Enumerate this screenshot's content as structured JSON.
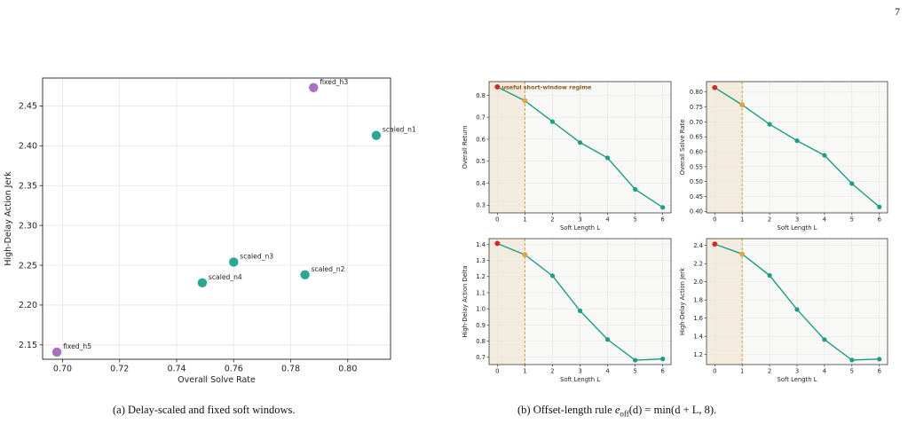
{
  "page_number": "7",
  "colors": {
    "scaled": "#2aa88e",
    "fixed": "#a86fc7",
    "line": "#1a9e86",
    "start_marker": "#d62728",
    "cut_marker": "#e0a43a",
    "regime_shade": "#f3ebdd",
    "cut_line": "#d9a53c",
    "regime_label": "#8b5a1e",
    "plot_bg": "#f8f8f6",
    "grid": "#e5e5e5"
  },
  "captions": {
    "a": "(a) Delay-scaled and fixed soft windows.",
    "b_prefix": "(b) Offset-length rule ",
    "b_formula": "e_off(d) = min(d + L, 8).",
    "b_formula_main": "e",
    "b_formula_sub": "off",
    "b_formula_rest": "(d) = min(d + L, 8)."
  },
  "chart_data": [
    {
      "id": "a",
      "type": "scatter",
      "xlabel": "Overall Solve Rate",
      "ylabel": "High-Delay Action Jerk",
      "xlim": [
        0.693,
        0.815
      ],
      "ylim": [
        2.132,
        2.485
      ],
      "xticks": [
        0.7,
        0.72,
        0.74,
        0.76,
        0.78,
        0.8
      ],
      "xtick_labels": [
        "0.70",
        "0.72",
        "0.74",
        "0.76",
        "0.78",
        "0.80"
      ],
      "yticks": [
        2.15,
        2.2,
        2.25,
        2.3,
        2.35,
        2.4,
        2.45
      ],
      "ytick_labels": [
        "2.15",
        "2.20",
        "2.25",
        "2.30",
        "2.35",
        "2.40",
        "2.45"
      ],
      "grid": true,
      "points": [
        {
          "label": "fixed_h3",
          "x": 0.788,
          "y": 2.473,
          "group": "fixed"
        },
        {
          "label": "scaled_n1",
          "x": 0.81,
          "y": 2.413,
          "group": "scaled"
        },
        {
          "label": "scaled_n3",
          "x": 0.76,
          "y": 2.254,
          "group": "scaled"
        },
        {
          "label": "scaled_n2",
          "x": 0.785,
          "y": 2.238,
          "group": "scaled"
        },
        {
          "label": "scaled_n4",
          "x": 0.749,
          "y": 2.228,
          "group": "scaled"
        },
        {
          "label": "fixed_h5",
          "x": 0.698,
          "y": 2.141,
          "group": "fixed"
        }
      ]
    },
    {
      "id": "b1",
      "type": "line",
      "xlabel": "Soft Length L",
      "ylabel": "Overall Return",
      "x": [
        0,
        1,
        2,
        3,
        4,
        5,
        6
      ],
      "y": [
        0.838,
        0.775,
        0.68,
        0.585,
        0.515,
        0.372,
        0.29
      ],
      "xlim": [
        -0.3,
        6.3
      ],
      "ylim": [
        0.265,
        0.862
      ],
      "yticks": [
        0.3,
        0.4,
        0.5,
        0.6,
        0.7,
        0.8
      ],
      "ytick_labels": [
        "0.3",
        "0.4",
        "0.5",
        "0.6",
        "0.7",
        "0.8"
      ],
      "xtick_labels": [
        "0",
        "1",
        "2",
        "3",
        "4",
        "5",
        "6"
      ],
      "regime_end": 1,
      "annotation": "useful short-window regime",
      "grid": true
    },
    {
      "id": "b2",
      "type": "line",
      "xlabel": "Soft Length L",
      "ylabel": "Overall Solve Rate",
      "x": [
        0,
        1,
        2,
        3,
        4,
        5,
        6
      ],
      "y": [
        0.815,
        0.757,
        0.692,
        0.637,
        0.588,
        0.493,
        0.415
      ],
      "xlim": [
        -0.3,
        6.3
      ],
      "ylim": [
        0.395,
        0.835
      ],
      "yticks": [
        0.4,
        0.45,
        0.5,
        0.55,
        0.6,
        0.65,
        0.7,
        0.75,
        0.8
      ],
      "ytick_labels": [
        "0.40",
        "0.45",
        "0.50",
        "0.55",
        "0.60",
        "0.65",
        "0.70",
        "0.75",
        "0.80"
      ],
      "xtick_labels": [
        "0",
        "1",
        "2",
        "3",
        "4",
        "5",
        "6"
      ],
      "regime_end": 1,
      "grid": true
    },
    {
      "id": "b3",
      "type": "line",
      "xlabel": "Soft Length L",
      "ylabel": "High-Delay Action Delta",
      "x": [
        0,
        1,
        2,
        3,
        4,
        5,
        6
      ],
      "y": [
        1.405,
        1.335,
        1.205,
        0.988,
        0.81,
        0.682,
        0.69
      ],
      "xlim": [
        -0.3,
        6.3
      ],
      "ylim": [
        0.655,
        1.435
      ],
      "yticks": [
        0.7,
        0.8,
        0.9,
        1.0,
        1.1,
        1.2,
        1.3,
        1.4
      ],
      "ytick_labels": [
        "0.7",
        "0.8",
        "0.9",
        "1.0",
        "1.1",
        "1.2",
        "1.3",
        "1.4"
      ],
      "xtick_labels": [
        "0",
        "1",
        "2",
        "3",
        "4",
        "5",
        "6"
      ],
      "regime_end": 1,
      "grid": true
    },
    {
      "id": "b4",
      "type": "line",
      "xlabel": "Soft Length L",
      "ylabel": "High-Delay Action Jerk",
      "x": [
        0,
        1,
        2,
        3,
        4,
        5,
        6
      ],
      "y": [
        2.415,
        2.305,
        2.07,
        1.695,
        1.365,
        1.14,
        1.15
      ],
      "xlim": [
        -0.3,
        6.3
      ],
      "ylim": [
        1.09,
        2.475
      ],
      "yticks": [
        1.2,
        1.4,
        1.6,
        1.8,
        2.0,
        2.2,
        2.4
      ],
      "ytick_labels": [
        "1.2",
        "1.4",
        "1.6",
        "1.8",
        "2.0",
        "2.2",
        "2.4"
      ],
      "xtick_labels": [
        "0",
        "1",
        "2",
        "3",
        "4",
        "5",
        "6"
      ],
      "regime_end": 1,
      "grid": true
    }
  ]
}
